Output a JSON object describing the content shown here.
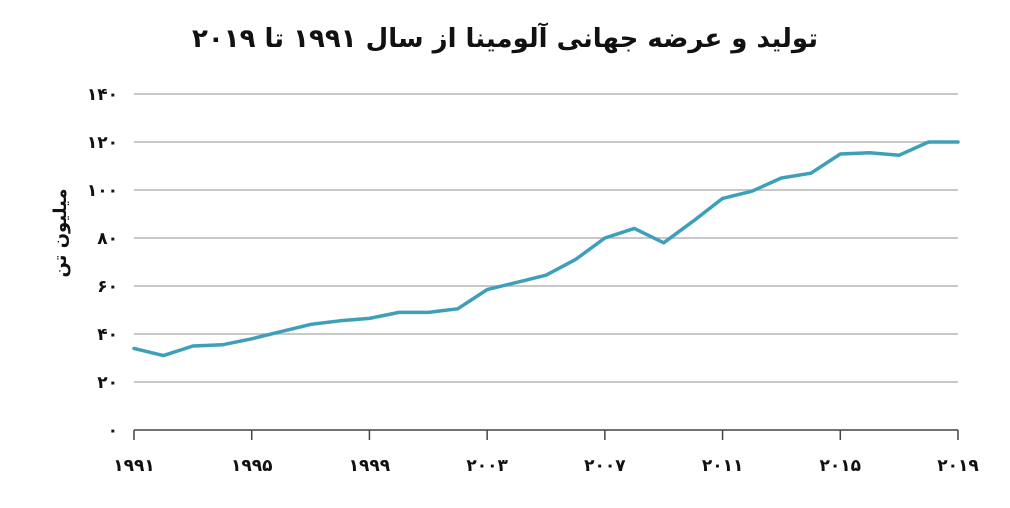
{
  "chart_data": {
    "type": "line",
    "title": "تولید و عرضه جهانی آلومینا از سال ۱۹۹۱ تا ۲۰۱۹",
    "ylabel": "میلیون تن",
    "xlabel": "",
    "ylim": [
      0,
      140
    ],
    "y_ticks": [
      0,
      20,
      40,
      60,
      80,
      100,
      120,
      140
    ],
    "y_tick_labels": [
      "٠",
      "٢٠",
      "۴٠",
      "۶٠",
      "٨٠",
      "١٠٠",
      "١٢٠",
      "١۴٠"
    ],
    "xlim": [
      1991,
      2019
    ],
    "x_ticks": [
      1991,
      1995,
      1999,
      2003,
      2007,
      2011,
      2015,
      2019
    ],
    "x_tick_labels": [
      "١٩٩١",
      "١٩٩۵",
      "١٩٩٩",
      "٢٠٠٣",
      "٢٠٠٧",
      "٢٠١١",
      "٢٠١۵",
      "٢٠١٩"
    ],
    "grid": true,
    "color": "#3e9fbb",
    "series": [
      {
        "x": [
          1991,
          1992,
          1993,
          1994,
          1995,
          1996,
          1997,
          1998,
          1999,
          2000,
          2001,
          2002,
          2003,
          2004,
          2005,
          2006,
          2007,
          2008,
          2009,
          2010,
          2011,
          2012,
          2013,
          2014,
          2015,
          2016,
          2017,
          2018,
          2019
        ],
        "values": [
          34,
          31,
          35,
          35.5,
          38,
          41,
          44,
          45.5,
          46.5,
          49,
          49,
          50.5,
          58.5,
          61.5,
          64.5,
          71,
          80,
          84,
          78,
          87,
          96.5,
          99.5,
          105,
          107,
          115,
          115.5,
          114.5,
          120,
          120
        ]
      }
    ]
  }
}
